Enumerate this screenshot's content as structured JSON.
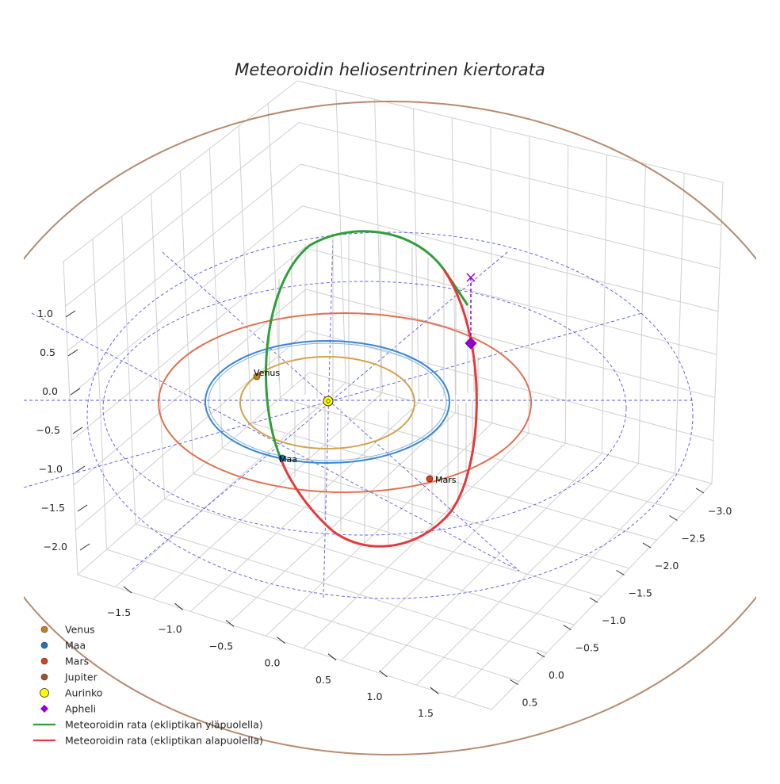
{
  "chart_data": {
    "type": "line3d",
    "title": "Meteoroidin heliosentrinen kiertorata",
    "axes": {
      "z_ticks": [
        "1.0",
        "0.5",
        "0.0",
        "−0.5",
        "−1.0",
        "−1.5",
        "−2.0"
      ],
      "x_ticks": [
        "−1.5",
        "−1.0",
        "−0.5",
        "0.0",
        "0.5",
        "1.0",
        "1.5"
      ],
      "y_ticks": [
        "−3.0",
        "−2.5",
        "−2.0",
        "−1.5",
        "−1.0",
        "−0.5",
        "0.0",
        "0.5"
      ]
    },
    "planet_orbits": [
      {
        "name": "Venus",
        "radius_au": 0.72,
        "color": "#D4A24C"
      },
      {
        "name": "Maa",
        "radius_au": 1.0,
        "color": "#3A86D4"
      },
      {
        "name": "Mars",
        "radius_au": 1.52,
        "color": "#E07050"
      },
      {
        "name": "Jupiter",
        "radius_au": 5.2,
        "color": "#B88A6E"
      }
    ],
    "reference_circles_au": [
      2.0,
      3.0
    ],
    "planets": [
      {
        "name": "Venus",
        "label": "Venus",
        "color": "#C87F1E"
      },
      {
        "name": "Maa",
        "label": "Maa",
        "color": "#1F77B4"
      },
      {
        "name": "Mars",
        "label": "Mars",
        "color": "#D2451E"
      }
    ],
    "sun": {
      "name": "Aurinko",
      "color": "#FFFF00"
    },
    "aphelion": {
      "name": "Apheli",
      "color": "#9400D3"
    },
    "meteoroid_orbit": {
      "above": {
        "name": "Meteoroidin rata (ekliptikan yläpuolella)",
        "color": "#2E9E3A"
      },
      "below": {
        "name": "Meteoroidin rata (ekliptikan alapuolella)",
        "color": "#E63A3A"
      }
    },
    "legend": [
      {
        "label": "Venus",
        "marker": "circle",
        "color": "#C87F1E"
      },
      {
        "label": "Maa",
        "marker": "circle",
        "color": "#1F77B4"
      },
      {
        "label": "Mars",
        "marker": "circle",
        "color": "#D2451E"
      },
      {
        "label": "Jupiter",
        "marker": "circle",
        "color": "#A0522D"
      },
      {
        "label": "Aurinko",
        "marker": "circle-large",
        "color": "#FFFF00"
      },
      {
        "label": "Apheli",
        "marker": "diamond",
        "color": "#9400D3"
      },
      {
        "label": "Meteoroidin rata (ekliptikan yläpuolella)",
        "marker": "line",
        "color": "#2E9E3A"
      },
      {
        "label": "Meteoroidin rata (ekliptikan alapuolella)",
        "marker": "line",
        "color": "#E63A3A"
      }
    ],
    "legend_position": "lower-left"
  }
}
